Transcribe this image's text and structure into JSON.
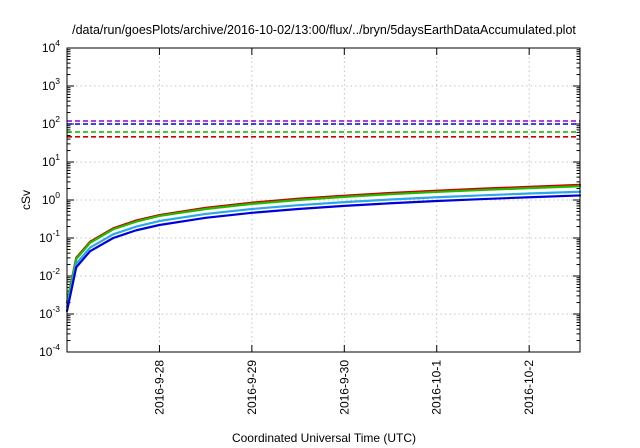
{
  "chart_data": {
    "type": "line",
    "title": "/data/run/goesPlots/archive/2016-10-02/13:00/flux/../bryn/5daysEarthDataAccumulated.plot",
    "xlabel": "Coordinated Universal Time (UTC)",
    "ylabel": "cSv",
    "x_tick_labels": [
      "2016-9-28",
      "2016-9-29",
      "2016-9-30",
      "2016-10-1",
      "2016-10-2"
    ],
    "x_tick_days": [
      1,
      2,
      3,
      4,
      5
    ],
    "xlim_days": [
      0,
      5.55
    ],
    "yscale": "log",
    "ylim": [
      0.0001,
      10000
    ],
    "y_tick_labels": [
      {
        "base": "10",
        "exp": "-4"
      },
      {
        "base": "10",
        "exp": "-3"
      },
      {
        "base": "10",
        "exp": "-2"
      },
      {
        "base": "10",
        "exp": "-1"
      },
      {
        "base": "10",
        "exp": "0"
      },
      {
        "base": "10",
        "exp": "1"
      },
      {
        "base": "10",
        "exp": "2"
      },
      {
        "base": "10",
        "exp": "3"
      },
      {
        "base": "10",
        "exp": "4"
      }
    ],
    "grid": true,
    "series": [
      {
        "color": "#cc0000",
        "x": [
          0,
          0.1,
          0.25,
          0.5,
          0.75,
          1,
          1.5,
          2,
          2.5,
          3,
          3.5,
          4,
          4.5,
          5,
          5.55
        ],
        "values": [
          0.002,
          0.03,
          0.08,
          0.18,
          0.29,
          0.4,
          0.62,
          0.85,
          1.08,
          1.3,
          1.53,
          1.76,
          1.99,
          2.22,
          2.5
        ]
      },
      {
        "color": "#22bb00",
        "x": [
          0,
          0.1,
          0.25,
          0.5,
          0.75,
          1,
          1.5,
          2,
          2.5,
          3,
          3.5,
          4,
          4.5,
          5,
          5.55
        ],
        "values": [
          0.002,
          0.028,
          0.075,
          0.17,
          0.27,
          0.38,
          0.58,
          0.79,
          1.0,
          1.21,
          1.42,
          1.63,
          1.84,
          2.05,
          2.3
        ]
      },
      {
        "color": "#2aa8e8",
        "x": [
          0,
          0.1,
          0.25,
          0.5,
          0.75,
          1,
          1.5,
          2,
          2.5,
          3,
          3.5,
          4,
          4.5,
          5,
          5.55
        ],
        "values": [
          0.0015,
          0.021,
          0.056,
          0.125,
          0.2,
          0.28,
          0.43,
          0.58,
          0.73,
          0.88,
          1.03,
          1.18,
          1.33,
          1.48,
          1.65
        ]
      },
      {
        "color": "#0000dd",
        "x": [
          0,
          0.1,
          0.25,
          0.5,
          0.75,
          1,
          1.5,
          2,
          2.5,
          3,
          3.5,
          4,
          4.5,
          5,
          5.55
        ],
        "values": [
          0.0012,
          0.017,
          0.045,
          0.1,
          0.16,
          0.22,
          0.34,
          0.46,
          0.58,
          0.7,
          0.82,
          0.94,
          1.06,
          1.18,
          1.32
        ]
      }
    ],
    "reference_lines": [
      {
        "color": "#9400d3",
        "value": 120
      },
      {
        "color": "#0000dd",
        "value": 100
      },
      {
        "color": "#22bb00",
        "value": 62
      },
      {
        "color": "#cc0000",
        "value": 46
      }
    ]
  }
}
